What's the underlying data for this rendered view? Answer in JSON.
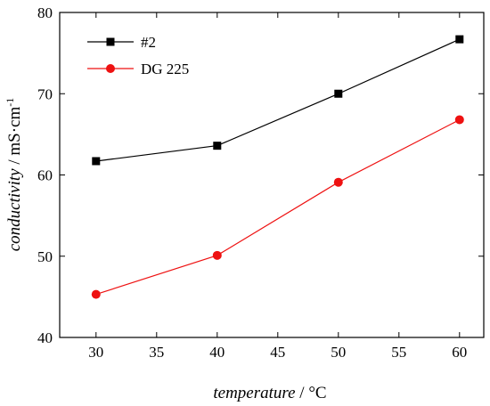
{
  "chart_data": {
    "type": "line",
    "x": [
      30,
      40,
      50,
      60
    ],
    "series": [
      {
        "name": "#2",
        "values": [
          61.7,
          63.6,
          70.0,
          76.7
        ],
        "color": "#000000",
        "marker": "square"
      },
      {
        "name": "DG 225",
        "values": [
          45.3,
          50.1,
          59.1,
          66.8
        ],
        "color": "#ee1111",
        "marker": "circle"
      }
    ],
    "xlim": [
      27,
      62
    ],
    "ylim": [
      40,
      80
    ],
    "x_ticks": [
      30,
      35,
      40,
      45,
      50,
      55,
      60
    ],
    "y_ticks": [
      40,
      50,
      60,
      70,
      80
    ],
    "xlabel": {
      "italic": "temperature",
      "rest": " / °C"
    },
    "ylabel": {
      "italic": "conductivity",
      "rest": " / mS·cm",
      "sup": "-1"
    },
    "legend_position": "top-left",
    "grid": false
  }
}
